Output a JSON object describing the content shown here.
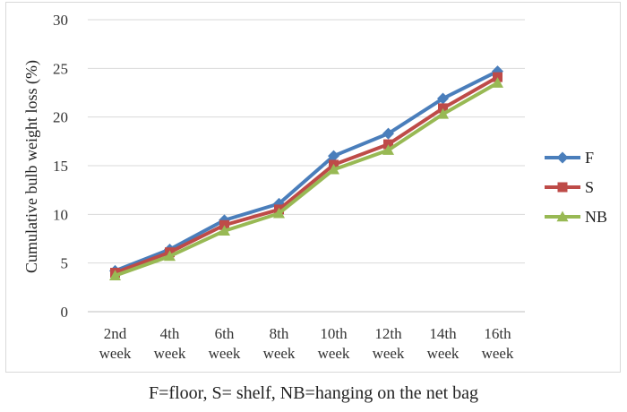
{
  "chart_data": {
    "type": "line",
    "categories": [
      [
        "2nd",
        "week"
      ],
      [
        "4th",
        "week"
      ],
      [
        "6th",
        "week"
      ],
      [
        "8th",
        "week"
      ],
      [
        "10th",
        "week"
      ],
      [
        "12th",
        "week"
      ],
      [
        "14th",
        "week"
      ],
      [
        "16th",
        "week"
      ]
    ],
    "series": [
      {
        "name": "F",
        "color": "#4a7ebb",
        "marker": "diamond",
        "values": [
          4.2,
          6.4,
          9.4,
          11.1,
          16.0,
          18.3,
          21.9,
          24.7
        ]
      },
      {
        "name": "S",
        "color": "#be4b48",
        "marker": "square",
        "values": [
          4.0,
          6.1,
          8.9,
          10.5,
          15.1,
          17.2,
          20.9,
          24.1
        ]
      },
      {
        "name": "NB",
        "color": "#98b954",
        "marker": "triangle",
        "values": [
          3.7,
          5.7,
          8.3,
          10.1,
          14.6,
          16.6,
          20.3,
          23.5
        ]
      }
    ],
    "ylabel": "Cumulative bulb weight loss (%)",
    "xlabel": "",
    "ylim": [
      0,
      30
    ],
    "yticks": [
      0,
      5,
      10,
      15,
      20,
      25,
      30
    ],
    "grid": "horizontal",
    "legend_position": "right"
  },
  "caption": "F=floor, S= shelf, NB=hanging on the net bag"
}
